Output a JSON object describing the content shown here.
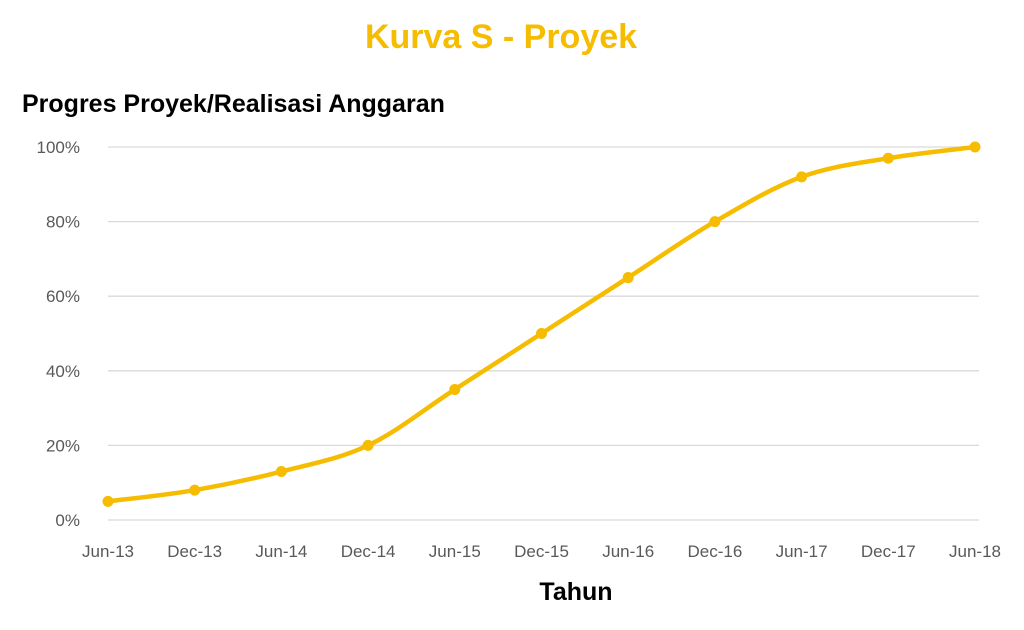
{
  "chart_data": {
    "type": "line",
    "title": "Kurva S - Proyek",
    "ylabel": "Progres Proyek/Realisasi Anggaran",
    "xlabel": "Tahun",
    "categories": [
      "Jun-13",
      "Dec-13",
      "Jun-14",
      "Dec-14",
      "Jun-15",
      "Dec-15",
      "Jun-16",
      "Dec-16",
      "Jun-17",
      "Dec-17",
      "Jun-18"
    ],
    "series": [
      {
        "values": [
          0.05,
          0.08,
          0.13,
          0.2,
          0.35,
          0.5,
          0.65,
          0.8,
          0.92,
          0.97,
          1.0
        ]
      }
    ],
    "y_ticks": [
      "0%",
      "20%",
      "40%",
      "60%",
      "80%",
      "100%"
    ],
    "ylim": [
      0,
      1
    ],
    "y_format": "percent",
    "grid": true,
    "line_color": "#F5BC00",
    "grid_color": "#D9D9D9",
    "legend": "none"
  }
}
